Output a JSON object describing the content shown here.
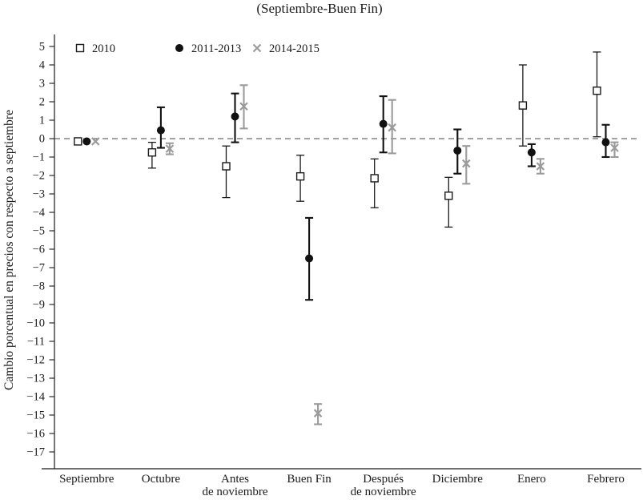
{
  "title": "(Septiembre-Buen Fin)",
  "chart_data": {
    "type": "scatter",
    "subtype": "point-estimates-with-error-bars",
    "title": "(Septiembre-Buen Fin)",
    "ylabel": "Cambio porcentual en precios con respecto a septiembre",
    "ylim": [
      -17,
      5
    ],
    "yticks": [
      5,
      4,
      3,
      2,
      1,
      0,
      -1,
      -2,
      -3,
      -4,
      -5,
      -6,
      -7,
      -8,
      -9,
      -10,
      -11,
      -12,
      -13,
      -14,
      -15,
      -16,
      -17
    ],
    "zero_reference_line": true,
    "grid": false,
    "legend_position": "top-left-inside",
    "categories": [
      "Septiembre",
      "Octubre",
      "Antes\nde noviembre",
      "Buen Fin",
      "Después\nde noviembre",
      "Diciembre",
      "Enero",
      "Febrero"
    ],
    "series": [
      {
        "name": "2010",
        "marker": "open-square",
        "color": "#1a1a1a",
        "values": [
          -0.15,
          -0.75,
          -1.5,
          -2.05,
          -2.15,
          -3.1,
          1.8,
          2.6
        ],
        "ci_low": [
          null,
          -1.6,
          -3.2,
          -3.4,
          -3.75,
          -4.8,
          -0.4,
          0.1
        ],
        "ci_high": [
          null,
          -0.2,
          -0.4,
          -0.9,
          -1.1,
          -2.1,
          4.0,
          4.7
        ]
      },
      {
        "name": "2011-2013",
        "marker": "filled-circle",
        "color": "#111111",
        "values": [
          -0.15,
          0.45,
          1.2,
          -6.5,
          0.8,
          -0.65,
          -0.75,
          -0.2
        ],
        "ci_low": [
          null,
          -0.5,
          -0.2,
          -8.75,
          -0.75,
          -1.9,
          -1.5,
          -1.0
        ],
        "ci_high": [
          null,
          1.7,
          2.45,
          -4.3,
          2.3,
          0.5,
          -0.3,
          0.75
        ]
      },
      {
        "name": "2014-2015",
        "marker": "x",
        "color": "#9b9b9b",
        "values": [
          -0.15,
          -0.55,
          1.75,
          -14.9,
          0.6,
          -1.35,
          -1.5,
          -0.5
        ],
        "ci_low": [
          null,
          -0.85,
          0.55,
          -15.5,
          -0.8,
          -2.45,
          -1.9,
          -1.0
        ],
        "ci_high": [
          null,
          -0.25,
          2.9,
          -14.4,
          2.1,
          -0.4,
          -1.1,
          -0.2
        ]
      }
    ]
  }
}
